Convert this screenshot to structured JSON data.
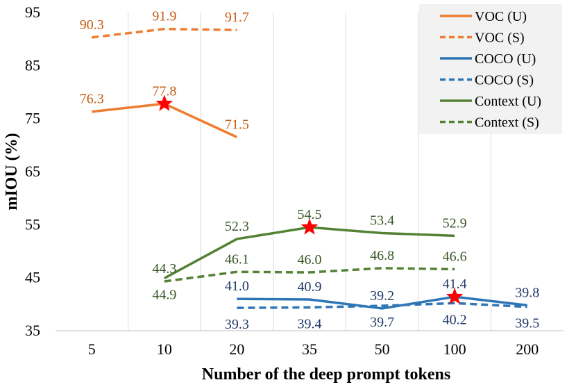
{
  "chart_data": {
    "type": "line",
    "categories": [
      "5",
      "10",
      "20",
      "35",
      "50",
      "100",
      "200"
    ],
    "xlabel": "Number of the deep prompt tokens",
    "ylabel": "mIOU (%)",
    "ylim": [
      35,
      95
    ],
    "yticks": [
      "35",
      "45",
      "55",
      "65",
      "75",
      "85",
      "95"
    ],
    "grid": "vertical",
    "legend_position": "top-right",
    "series": [
      {
        "name": "VOC (U)",
        "color": "#ED7D31",
        "dash": "solid",
        "values": [
          76.3,
          77.8,
          71.5,
          null,
          null,
          null,
          null
        ],
        "labels": [
          "76.3",
          "77.8",
          "71.5",
          null,
          null,
          null,
          null
        ],
        "label_pos": [
          "above",
          "above",
          "above",
          null,
          null,
          null,
          null
        ]
      },
      {
        "name": "VOC (S)",
        "color": "#ED7D31",
        "dash": "dashed",
        "values": [
          90.3,
          91.9,
          91.7,
          null,
          null,
          null,
          null
        ],
        "labels": [
          "90.3",
          "91.9",
          "91.7",
          null,
          null,
          null,
          null
        ],
        "label_pos": [
          "above",
          "above",
          "above",
          null,
          null,
          null,
          null
        ]
      },
      {
        "name": "COCO (U)",
        "color": "#2E75B6",
        "dash": "solid",
        "values": [
          null,
          null,
          41.0,
          40.9,
          39.2,
          41.4,
          39.8
        ],
        "labels": [
          null,
          null,
          "41.0",
          "40.9",
          "39.2",
          "41.4",
          "39.8"
        ],
        "label_pos": [
          null,
          null,
          "above",
          "above",
          "above",
          "above",
          "above"
        ]
      },
      {
        "name": "COCO (S)",
        "color": "#2E75B6",
        "dash": "dashed",
        "values": [
          null,
          null,
          39.3,
          39.4,
          39.7,
          40.2,
          39.5
        ],
        "labels": [
          null,
          null,
          "39.3",
          "39.4",
          "39.7",
          "40.2",
          "39.5"
        ],
        "label_pos": [
          null,
          null,
          "below",
          "below",
          "below",
          "below",
          "below"
        ]
      },
      {
        "name": "Context (U)",
        "color": "#548235",
        "dash": "solid",
        "values": [
          null,
          44.9,
          52.3,
          54.5,
          53.4,
          52.9,
          null
        ],
        "labels": [
          null,
          "44.9",
          "52.3",
          "54.5",
          "53.4",
          "52.9",
          null
        ],
        "label_pos": [
          null,
          "below",
          "above",
          "above",
          "above",
          "above",
          null
        ]
      },
      {
        "name": "Context (S)",
        "color": "#548235",
        "dash": "dashed",
        "values": [
          null,
          44.3,
          46.1,
          46.0,
          46.8,
          46.6,
          null
        ],
        "labels": [
          null,
          "44.3",
          "46.1",
          "46.0",
          "46.8",
          "46.6",
          null
        ],
        "label_pos": [
          null,
          "above",
          "above",
          "above",
          "above",
          "above",
          null
        ]
      }
    ],
    "best_markers": [
      {
        "series": "VOC (U)",
        "category": "10",
        "value": 77.8,
        "color": "#FF0000"
      },
      {
        "series": "Context (U)",
        "category": "35",
        "value": 54.5,
        "color": "#FF0000"
      },
      {
        "series": "COCO (U)",
        "category": "100",
        "value": 41.4,
        "color": "#FF0000"
      }
    ]
  }
}
